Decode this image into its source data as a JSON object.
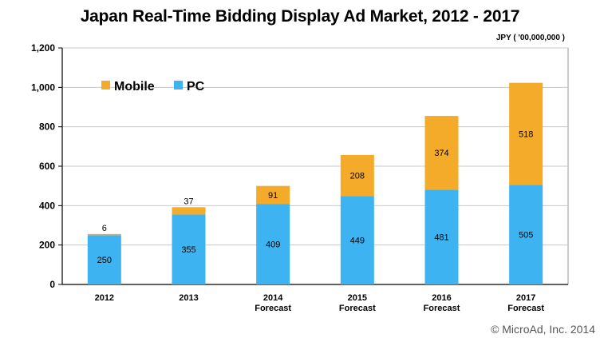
{
  "chart_data": {
    "type": "bar",
    "stacked": true,
    "title": "Japan Real-Time Bidding Display Ad Market, 2012 - 2017",
    "unit_label": "JPY ( '00,000,000 )",
    "categories": [
      [
        "2012"
      ],
      [
        "2013"
      ],
      [
        "2014",
        "Forecast"
      ],
      [
        "2015",
        "Forecast"
      ],
      [
        "2016",
        "Forecast"
      ],
      [
        "2017",
        "Forecast"
      ]
    ],
    "series": [
      {
        "name": "PC",
        "color": "#3db3f2",
        "values": [
          250,
          355,
          409,
          449,
          481,
          505
        ]
      },
      {
        "name": "Mobile",
        "color": "#f5ab2a",
        "values": [
          6,
          37,
          91,
          208,
          374,
          518
        ]
      }
    ],
    "ylim": [
      0,
      1200
    ],
    "yticks": [
      0,
      200,
      400,
      600,
      800,
      1000,
      1200
    ],
    "ytick_labels": [
      "0",
      "200",
      "400",
      "600",
      "800",
      "1,000",
      "1,200"
    ],
    "legend": [
      "Mobile",
      "PC"
    ],
    "legend_position": "top-left",
    "gridlines": true
  },
  "footer": {
    "copyright": "© MicroAd, Inc. 2014"
  }
}
